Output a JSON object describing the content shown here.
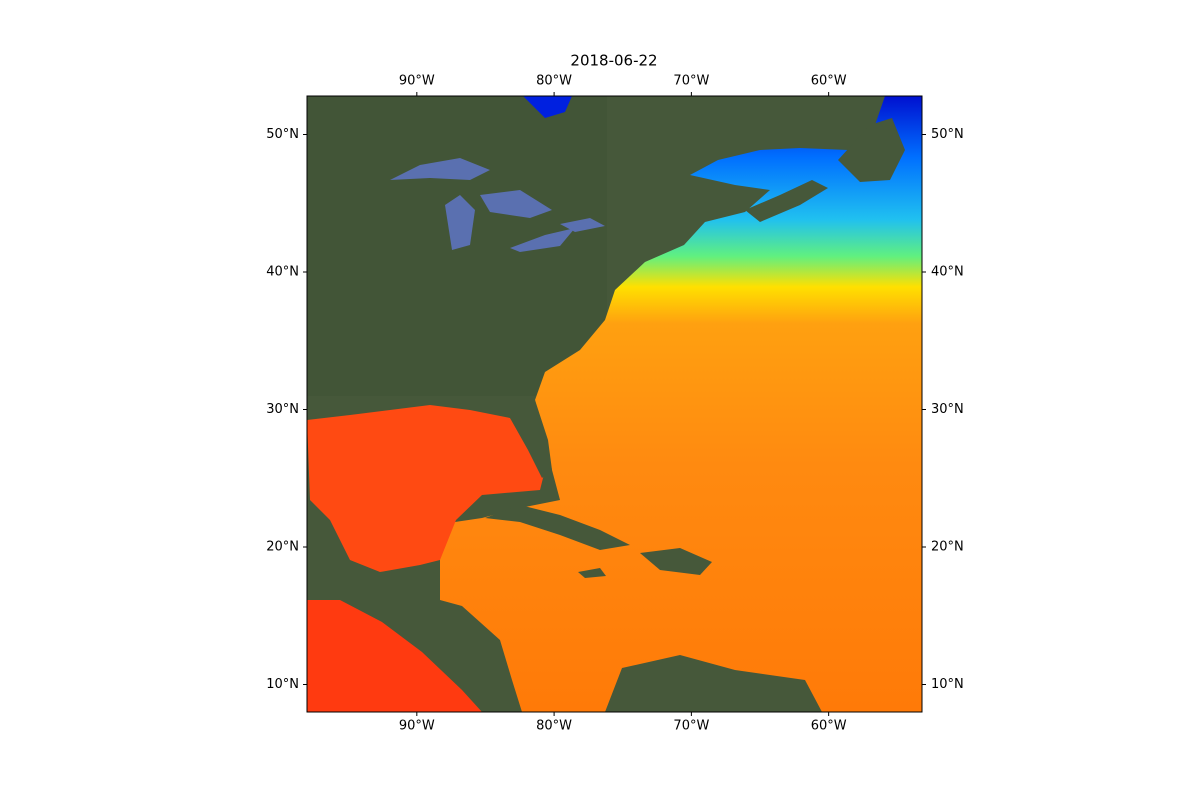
{
  "title": "2018-06-22",
  "lon_range": [
    -98,
    -53.2
  ],
  "lat_range": [
    8,
    52.8
  ],
  "lon_ticks": [
    {
      "value": -90,
      "label": "90°W"
    },
    {
      "value": -80,
      "label": "80°W"
    },
    {
      "value": -70,
      "label": "70°W"
    },
    {
      "value": -60,
      "label": "60°W"
    }
  ],
  "lat_ticks": [
    {
      "value": 10,
      "label": "10°N"
    },
    {
      "value": 20,
      "label": "20°N"
    },
    {
      "value": 30,
      "label": "30°N"
    },
    {
      "value": 40,
      "label": "40°N"
    },
    {
      "value": 50,
      "label": "50°N"
    }
  ]
}
